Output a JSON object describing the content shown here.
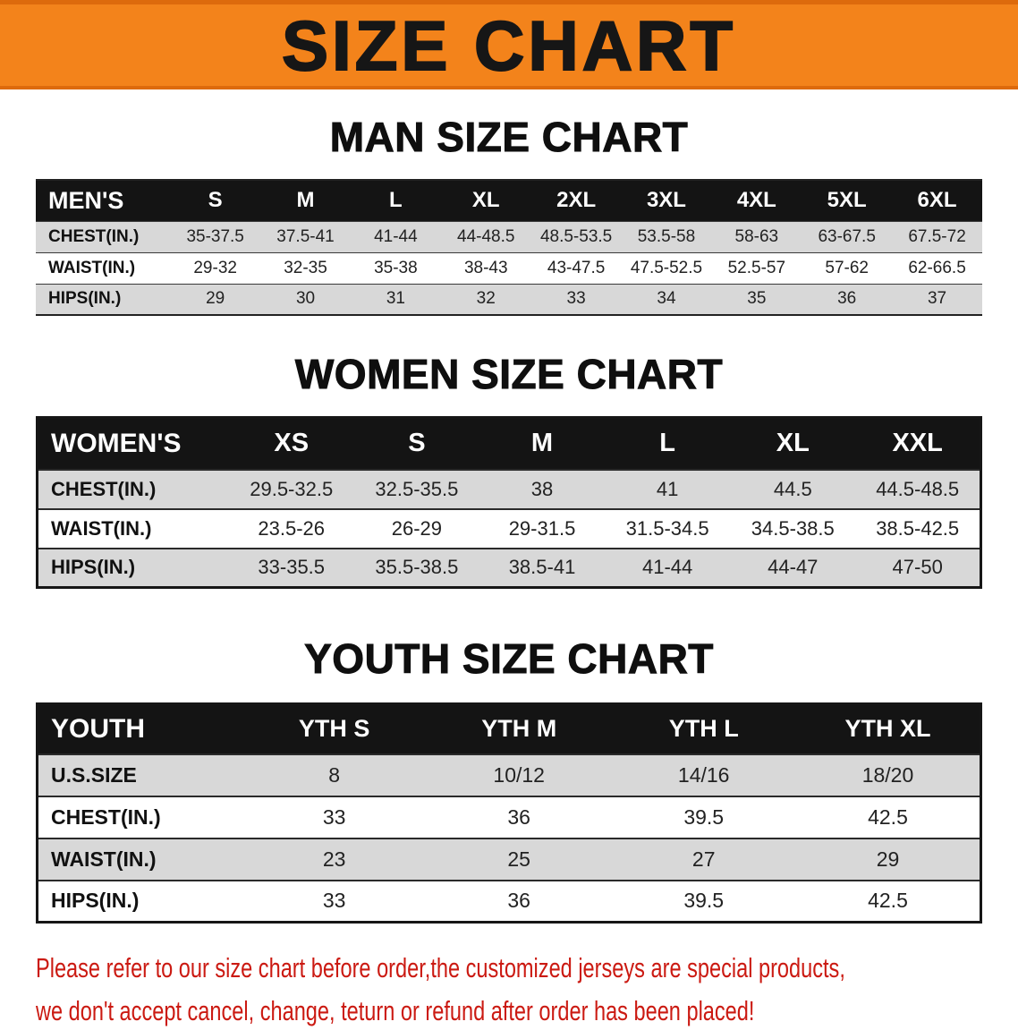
{
  "banner": {
    "title": "SIZE CHART"
  },
  "colors": {
    "banner_orange": "#f3831b",
    "table_header_black": "#141414",
    "stripe_gray": "#d8d8d8",
    "note_red": "#cb1a12"
  },
  "sections": [
    {
      "title": "MAN SIZE CHART",
      "header": [
        "MEN'S",
        "S",
        "M",
        "L",
        "XL",
        "2XL",
        "3XL",
        "4XL",
        "5XL",
        "6XL"
      ],
      "rows": [
        {
          "label": "CHEST(IN.)",
          "values": [
            "35-37.5",
            "37.5-41",
            "41-44",
            "44-48.5",
            "48.5-53.5",
            "53.5-58",
            "58-63",
            "63-67.5",
            "67.5-72"
          ]
        },
        {
          "label": "WAIST(IN.)",
          "values": [
            "29-32",
            "32-35",
            "35-38",
            "38-43",
            "43-47.5",
            "47.5-52.5",
            "52.5-57",
            "57-62",
            "62-66.5"
          ]
        },
        {
          "label": "HIPS(IN.)",
          "values": [
            "29",
            "30",
            "31",
            "32",
            "33",
            "34",
            "35",
            "36",
            "37"
          ]
        }
      ]
    },
    {
      "title": "WOMEN SIZE CHART",
      "header": [
        "WOMEN'S",
        "XS",
        "S",
        "M",
        "L",
        "XL",
        "XXL"
      ],
      "rows": [
        {
          "label": "CHEST(IN.)",
          "values": [
            "29.5-32.5",
            "32.5-35.5",
            "38",
            "41",
            "44.5",
            "44.5-48.5"
          ]
        },
        {
          "label": "WAIST(IN.)",
          "values": [
            "23.5-26",
            "26-29",
            "29-31.5",
            "31.5-34.5",
            "34.5-38.5",
            "38.5-42.5"
          ]
        },
        {
          "label": "HIPS(IN.)",
          "values": [
            "33-35.5",
            "35.5-38.5",
            "38.5-41",
            "41-44",
            "44-47",
            "47-50"
          ]
        }
      ]
    },
    {
      "title": "YOUTH SIZE CHART",
      "header": [
        "YOUTH",
        "YTH S",
        "YTH M",
        "YTH L",
        "YTH XL"
      ],
      "rows": [
        {
          "label": "U.S.SIZE",
          "values": [
            "8",
            "10/12",
            "14/16",
            "18/20"
          ]
        },
        {
          "label": "CHEST(IN.)",
          "values": [
            "33",
            "36",
            "39.5",
            "42.5"
          ]
        },
        {
          "label": "WAIST(IN.)",
          "values": [
            "23",
            "25",
            "27",
            "29"
          ]
        },
        {
          "label": "HIPS(IN.)",
          "values": [
            "33",
            "36",
            "39.5",
            "42.5"
          ]
        }
      ]
    }
  ],
  "footer": {
    "line1": "Please refer to our size chart before order,the customized jerseys are special products,",
    "line2": "we don't accept cancel, change, teturn or refund after order has been placed!"
  }
}
